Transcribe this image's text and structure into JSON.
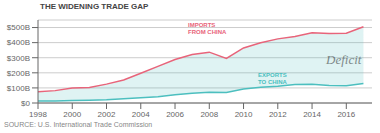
{
  "chart_data": {
    "type": "line",
    "title": "THE WIDENING TRADE GAP",
    "x": [
      1998,
      1999,
      2000,
      2001,
      2002,
      2003,
      2004,
      2005,
      2006,
      2007,
      2008,
      2009,
      2010,
      2011,
      2012,
      2013,
      2014,
      2015,
      2016,
      2017
    ],
    "series": [
      {
        "name": "IMPORTS\nFROM CHINA",
        "color": "#e8647a",
        "values": [
          75,
          82,
          100,
          102,
          125,
          152,
          197,
          243,
          288,
          321,
          337,
          296,
          365,
          399,
          425,
          440,
          466,
          461,
          463,
          505
        ]
      },
      {
        "name": "EXPORTS\nTO CHINA",
        "color": "#4cbfbf",
        "values": [
          14,
          13,
          16,
          19,
          22,
          28,
          35,
          42,
          55,
          65,
          71,
          69,
          92,
          104,
          111,
          122,
          124,
          116,
          115,
          130
        ]
      }
    ],
    "xlim": [
      1998,
      2017.5
    ],
    "xticks": [
      1998,
      2000,
      2002,
      2004,
      2006,
      2008,
      2010,
      2012,
      2014,
      2016
    ],
    "ylim": [
      0,
      550
    ],
    "yticks": [
      {
        "value": 0,
        "label": "$0"
      },
      {
        "value": 100,
        "label": "$100B"
      },
      {
        "value": 200,
        "label": "$200B"
      },
      {
        "value": 300,
        "label": "$300B"
      },
      {
        "value": 400,
        "label": "$400B"
      },
      {
        "value": 500,
        "label": "$500B"
      }
    ],
    "grid": true,
    "annotations": [
      "Deficit",
      "SOURCE: U.S. International Trade Commission"
    ]
  }
}
